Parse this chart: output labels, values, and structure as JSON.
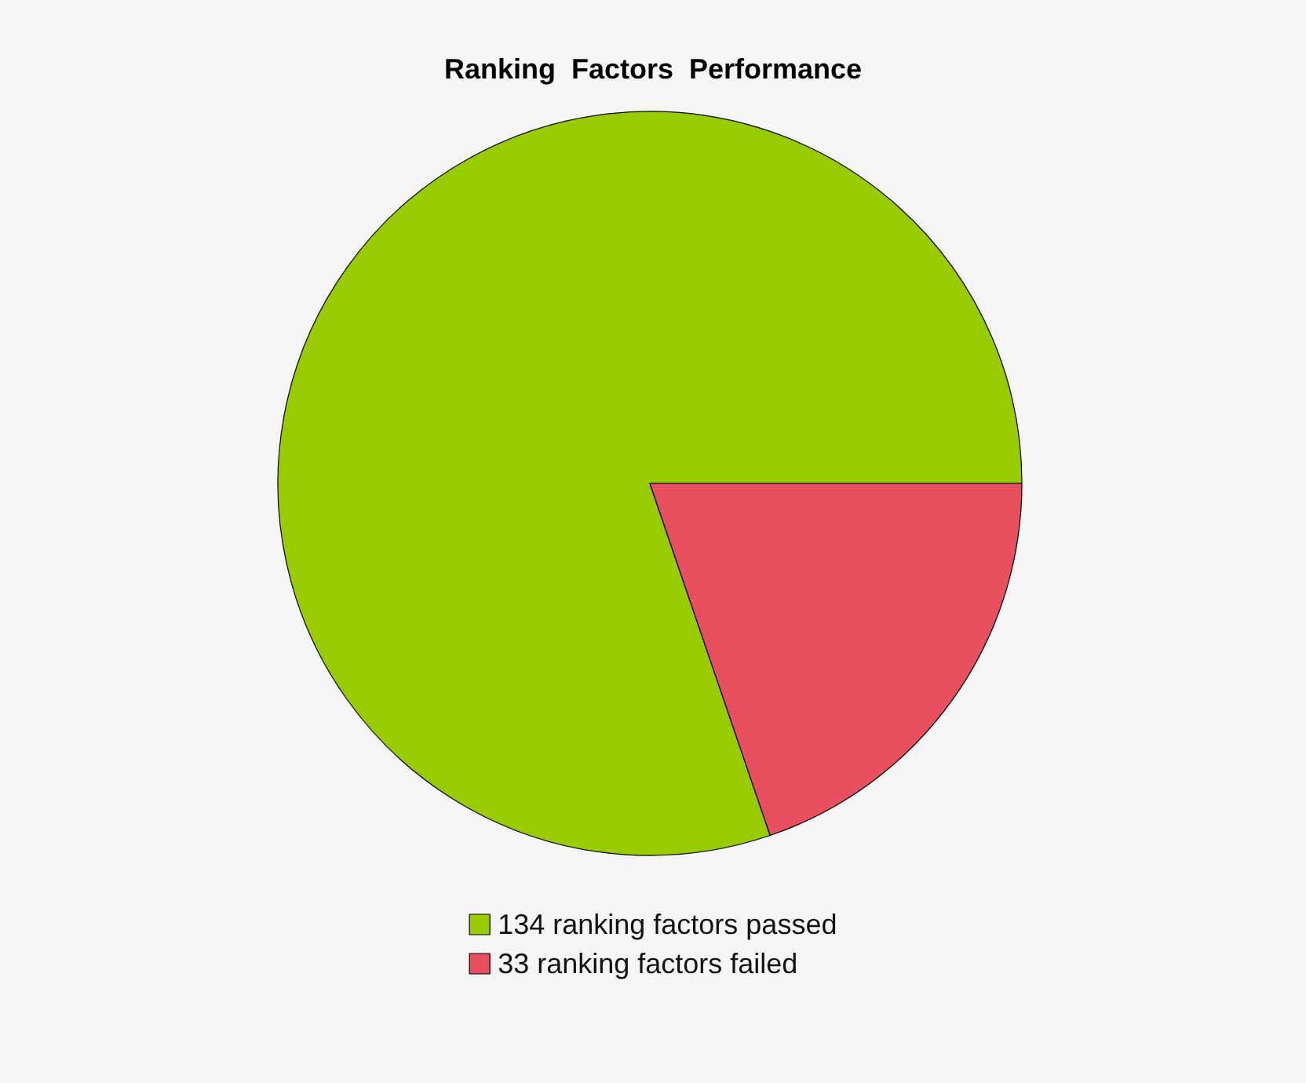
{
  "chart_data": {
    "type": "pie",
    "title": "Ranking  Factors  Performance",
    "categories": [
      "134 ranking factors passed",
      "33 ranking factors failed"
    ],
    "values": [
      134,
      33
    ],
    "colors": [
      "#99cc00",
      "#e85060"
    ],
    "legend": "bottom"
  }
}
